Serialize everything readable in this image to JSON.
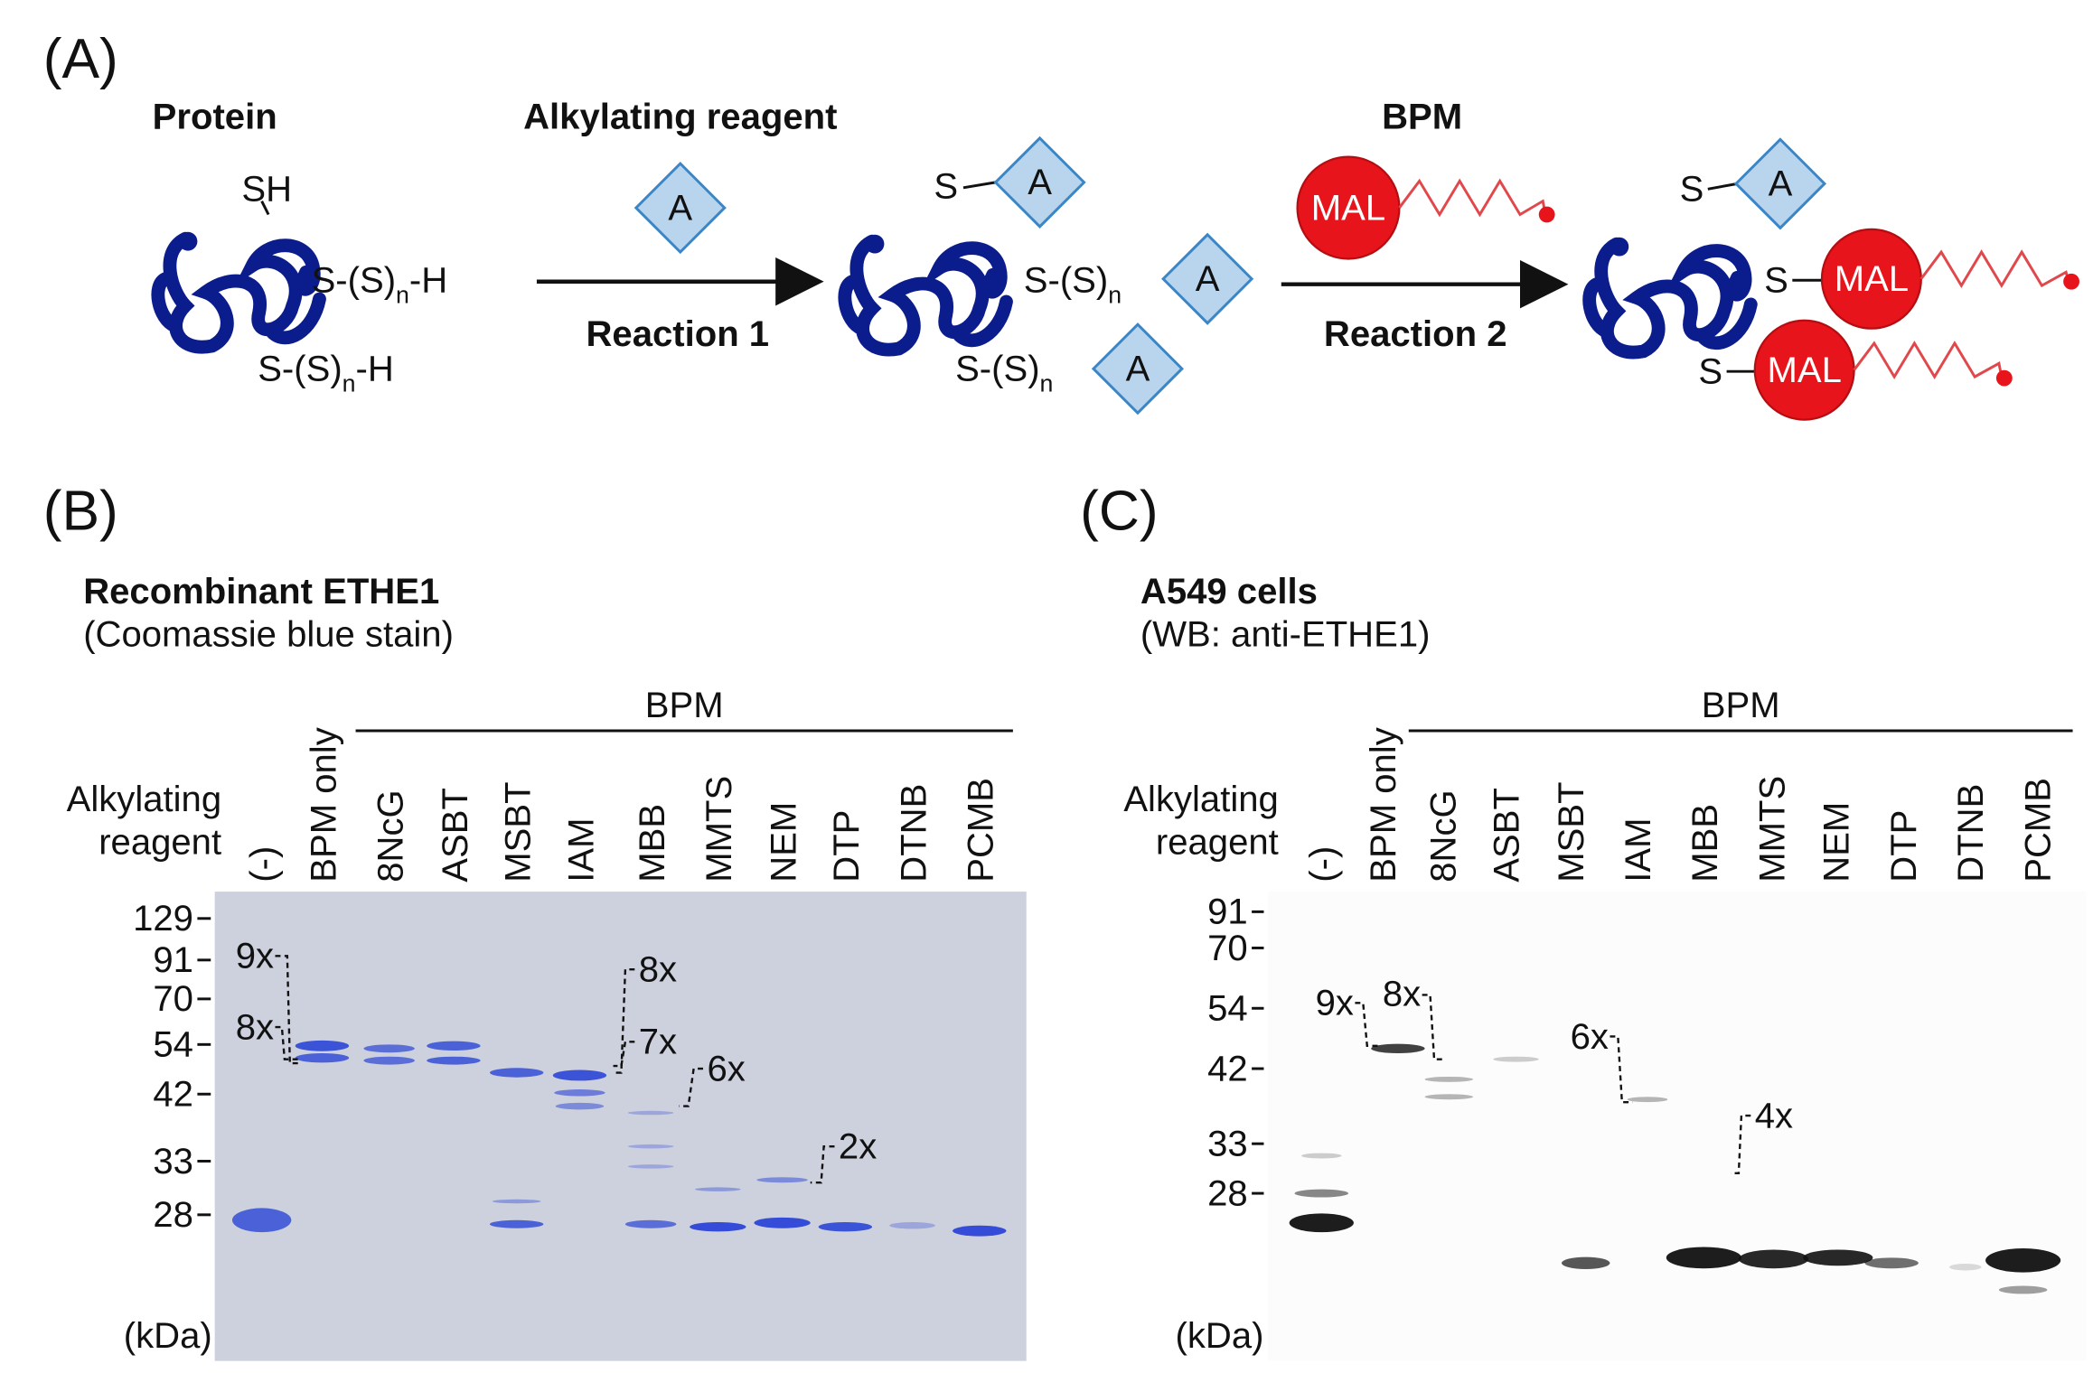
{
  "panel_a": {
    "label": "(A)",
    "protein": "Protein",
    "reagent_heading": "Alkylating reagent",
    "bpm_heading": "BPM",
    "reaction1": "Reaction 1",
    "reaction2": "Reaction 2",
    "thiol": "SH",
    "persulfide": {
      "prefix": "S-(S)",
      "sub": "n",
      "suffix": "-H"
    },
    "sulfur": "S",
    "alkyl_tag": "A",
    "maleimide": "MAL"
  },
  "panel_b": {
    "label": "(B)",
    "title": "Recombinant ETHE1",
    "subtitle": "(Coomassie blue stain)",
    "row_label": [
      "Alkylating",
      "reagent"
    ],
    "group_label": "BPM",
    "lanes": [
      "(-)",
      "BPM only",
      "8NcG",
      "ASBT",
      "MSBT",
      "IAM",
      "MBB",
      "MMTS",
      "NEM",
      "DTP",
      "DTNB",
      "PCMB"
    ],
    "markers": [
      129,
      91,
      70,
      54,
      42,
      33,
      28
    ],
    "unit": "(kDa)",
    "annotations": [
      "9x",
      "8x",
      "8x",
      "7x",
      "6x",
      "2x"
    ]
  },
  "panel_c": {
    "label": "(C)",
    "title": "A549 cells",
    "subtitle": "(WB: anti-ETHE1)",
    "row_label": [
      "Alkylating",
      "reagent"
    ],
    "group_label": "BPM",
    "lanes": [
      "(-)",
      "BPM only",
      "8NcG",
      "ASBT",
      "MSBT",
      "IAM",
      "MBB",
      "MMTS",
      "NEM",
      "DTP",
      "DTNB",
      "PCMB"
    ],
    "markers": [
      91,
      70,
      54,
      42,
      33,
      28
    ],
    "unit": "(kDa)",
    "annotations": [
      "9x",
      "8x",
      "6x",
      "4x"
    ]
  }
}
